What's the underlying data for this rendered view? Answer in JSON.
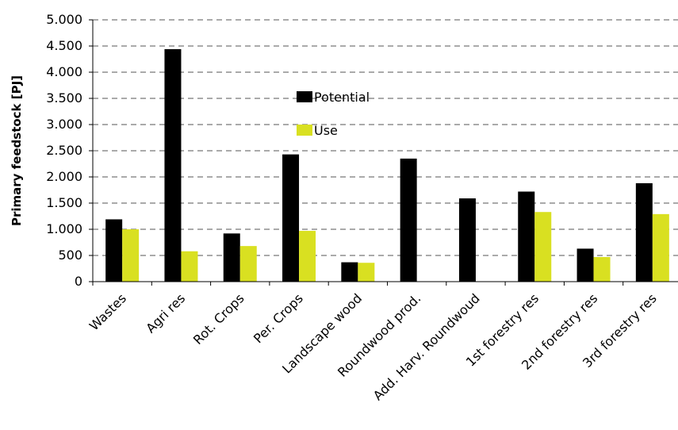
{
  "chart_data": {
    "type": "bar",
    "title": "",
    "xlabel": "",
    "ylabel": "Primary feedstock [PJ]",
    "ylim": [
      0,
      5000
    ],
    "yticks": [
      {
        "value": 0,
        "label": "0"
      },
      {
        "value": 500,
        "label": "500"
      },
      {
        "value": 1000,
        "label": "1.000"
      },
      {
        "value": 1500,
        "label": "1.500"
      },
      {
        "value": 2000,
        "label": "2.000"
      },
      {
        "value": 2500,
        "label": "2.500"
      },
      {
        "value": 3000,
        "label": "3.000"
      },
      {
        "value": 3500,
        "label": "3.500"
      },
      {
        "value": 4000,
        "label": "4.000"
      },
      {
        "value": 4500,
        "label": "4.500"
      },
      {
        "value": 5000,
        "label": "5.000"
      }
    ],
    "grid": true,
    "legend_position": "top-center",
    "categories": [
      "Wastes",
      "Agri res",
      "Rot. Crops",
      "Per. Crops",
      "Landscape wood",
      "Roundwood prod.",
      "Add. Harv. Roundwoud",
      "1st forestry res",
      "2nd forestry res",
      "3rd forestry res"
    ],
    "series": [
      {
        "name": "Potential",
        "color": "#000000",
        "values": [
          1190,
          4440,
          920,
          2430,
          370,
          2350,
          1590,
          1720,
          630,
          1880
        ]
      },
      {
        "name": "Use",
        "color": "#d9e021",
        "values": [
          1000,
          580,
          680,
          970,
          360,
          0,
          0,
          1330,
          470,
          1290
        ]
      }
    ]
  }
}
